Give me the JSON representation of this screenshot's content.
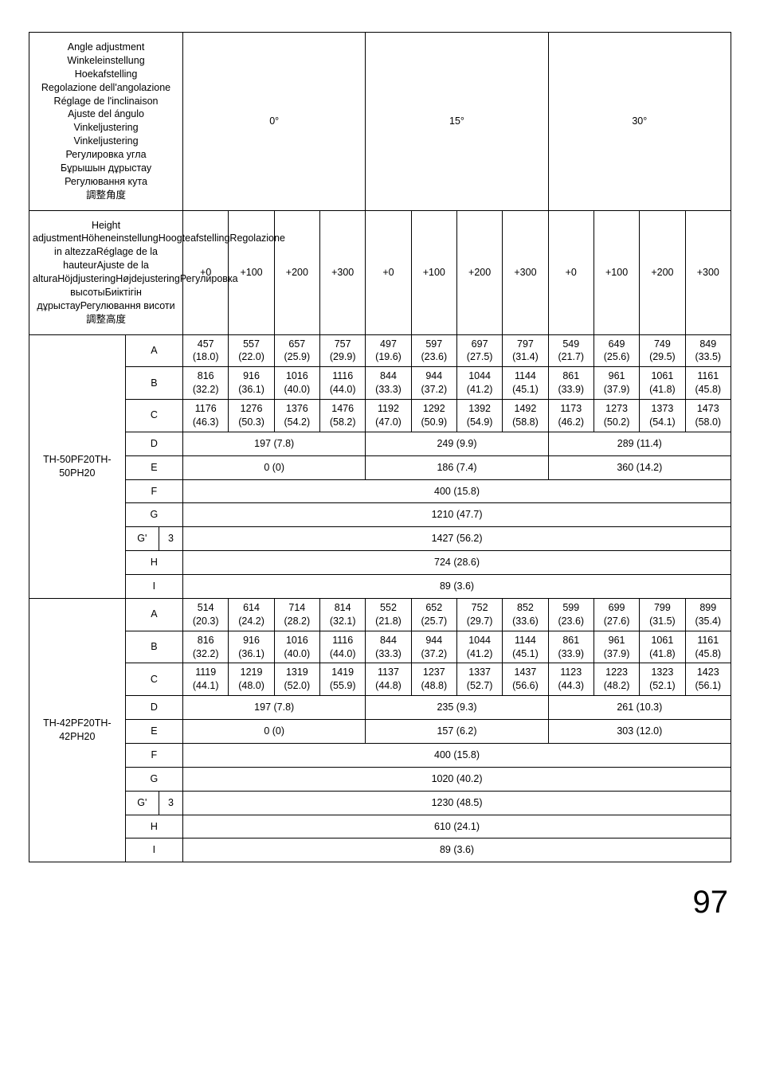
{
  "page_number": "97",
  "angle_header_lines": [
    "Angle adjustment",
    "Winkeleinstellung",
    "Hoekafstelling",
    "Regolazione dell'angolazione",
    "Réglage de l'inclinaison",
    "Ajuste del ángulo",
    "Vinkeljustering",
    "Vinkeljustering",
    "Регулировка угла",
    "Бұрышын дұрыстау",
    "Регулювання кута",
    "調整角度"
  ],
  "height_header_lines": [
    "Height adjustment",
    "Höheneinstellung",
    "Hoogteafstelling",
    "Regolazione in altezza",
    "Réglage de la hauteur",
    "Ajuste de la altura",
    "Höjdjustering",
    "Højdejustering",
    "Регулировка высоты",
    "Биіктігін дұрыстау",
    "Регулювання висоти",
    "調整高度"
  ],
  "angles": [
    "0°",
    "15°",
    "30°"
  ],
  "offsets": [
    "+0",
    "+100",
    "+200",
    "+300",
    "+0",
    "+100",
    "+200",
    "+300",
    "+0",
    "+100",
    "+200",
    "+300"
  ],
  "groups": [
    {
      "model_lines": [
        "TH-50PF20",
        "TH-50PH20"
      ],
      "dual_rows": [
        {
          "label": "A",
          "top": [
            "457",
            "557",
            "657",
            "757",
            "497",
            "597",
            "697",
            "797",
            "549",
            "649",
            "749",
            "849"
          ],
          "bot": [
            "(18.0)",
            "(22.0)",
            "(25.9)",
            "(29.9)",
            "(19.6)",
            "(23.6)",
            "(27.5)",
            "(31.4)",
            "(21.7)",
            "(25.6)",
            "(29.5)",
            "(33.5)"
          ]
        },
        {
          "label": "B",
          "top": [
            "816",
            "916",
            "1016",
            "1116",
            "844",
            "944",
            "1044",
            "1144",
            "861",
            "961",
            "1061",
            "1161"
          ],
          "bot": [
            "(32.2)",
            "(36.1)",
            "(40.0)",
            "(44.0)",
            "(33.3)",
            "(37.2)",
            "(41.2)",
            "(45.1)",
            "(33.9)",
            "(37.9)",
            "(41.8)",
            "(45.8)"
          ]
        },
        {
          "label": "C",
          "top": [
            "1176",
            "1276",
            "1376",
            "1476",
            "1192",
            "1292",
            "1392",
            "1492",
            "1173",
            "1273",
            "1373",
            "1473"
          ],
          "bot": [
            "(46.3)",
            "(50.3)",
            "(54.2)",
            "(58.2)",
            "(47.0)",
            "(50.9)",
            "(54.9)",
            "(58.8)",
            "(46.2)",
            "(50.2)",
            "(54.1)",
            "(58.0)"
          ]
        }
      ],
      "triple_rows": [
        {
          "label": "D",
          "vals": [
            "197 (7.8)",
            "249 (9.9)",
            "289 (11.4)"
          ]
        },
        {
          "label": "E",
          "vals": [
            "0 (0)",
            "186 (7.4)",
            "360 (14.2)"
          ]
        }
      ],
      "full_rows": [
        {
          "label": "F",
          "val": "400 (15.8)"
        },
        {
          "label": "G",
          "val": "1210 (47.7)"
        },
        {
          "label": "G'",
          "sub": "3",
          "val": "1427 (56.2)"
        },
        {
          "label": "H",
          "val": "724 (28.6)"
        },
        {
          "label": "I",
          "val": "89 (3.6)"
        }
      ]
    },
    {
      "model_lines": [
        "TH-42PF20",
        "TH-42PH20"
      ],
      "dual_rows": [
        {
          "label": "A",
          "top": [
            "514",
            "614",
            "714",
            "814",
            "552",
            "652",
            "752",
            "852",
            "599",
            "699",
            "799",
            "899"
          ],
          "bot": [
            "(20.3)",
            "(24.2)",
            "(28.2)",
            "(32.1)",
            "(21.8)",
            "(25.7)",
            "(29.7)",
            "(33.6)",
            "(23.6)",
            "(27.6)",
            "(31.5)",
            "(35.4)"
          ]
        },
        {
          "label": "B",
          "top": [
            "816",
            "916",
            "1016",
            "1116",
            "844",
            "944",
            "1044",
            "1144",
            "861",
            "961",
            "1061",
            "1161"
          ],
          "bot": [
            "(32.2)",
            "(36.1)",
            "(40.0)",
            "(44.0)",
            "(33.3)",
            "(37.2)",
            "(41.2)",
            "(45.1)",
            "(33.9)",
            "(37.9)",
            "(41.8)",
            "(45.8)"
          ]
        },
        {
          "label": "C",
          "top": [
            "1119",
            "1219",
            "1319",
            "1419",
            "1137",
            "1237",
            "1337",
            "1437",
            "1123",
            "1223",
            "1323",
            "1423"
          ],
          "bot": [
            "(44.1)",
            "(48.0)",
            "(52.0)",
            "(55.9)",
            "(44.8)",
            "(48.8)",
            "(52.7)",
            "(56.6)",
            "(44.3)",
            "(48.2)",
            "(52.1)",
            "(56.1)"
          ]
        }
      ],
      "triple_rows": [
        {
          "label": "D",
          "vals": [
            "197 (7.8)",
            "235 (9.3)",
            "261 (10.3)"
          ]
        },
        {
          "label": "E",
          "vals": [
            "0 (0)",
            "157 (6.2)",
            "303 (12.0)"
          ]
        }
      ],
      "full_rows": [
        {
          "label": "F",
          "val": "400 (15.8)"
        },
        {
          "label": "G",
          "val": "1020 (40.2)"
        },
        {
          "label": "G'",
          "sub": "3",
          "val": "1230 (48.5)"
        },
        {
          "label": "H",
          "val": "610 (24.1)"
        },
        {
          "label": "I",
          "val": "89 (3.6)"
        }
      ]
    }
  ]
}
